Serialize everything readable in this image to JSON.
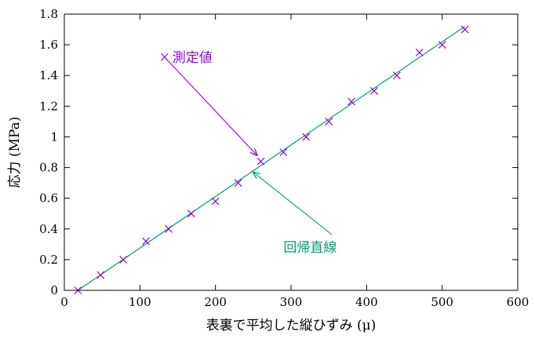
{
  "chart_data": {
    "type": "scatter",
    "title": "",
    "xlabel": "表裏で平均した縦ひずみ (μ)",
    "ylabel": "応力 (MPa)",
    "xlim": [
      0,
      600
    ],
    "ylim": [
      0,
      1.8
    ],
    "xticks": [
      "0",
      "100",
      "200",
      "300",
      "400",
      "500",
      "600"
    ],
    "yticks": [
      "0",
      "0.2",
      "0.4",
      "0.6",
      "0.8",
      "1",
      "1.2",
      "1.4",
      "1.6",
      "1.8"
    ],
    "grid": false,
    "series": [
      {
        "name": "測定値",
        "type": "scatter",
        "marker": "x",
        "color": "#9400d3",
        "x": [
          18,
          48,
          78,
          108,
          138,
          168,
          200,
          230,
          260,
          290,
          320,
          350,
          380,
          410,
          440,
          470,
          500,
          530
        ],
        "y": [
          0.0,
          0.1,
          0.2,
          0.32,
          0.4,
          0.5,
          0.58,
          0.7,
          0.84,
          0.9,
          1.0,
          1.1,
          1.23,
          1.3,
          1.4,
          1.55,
          1.6,
          1.7
        ]
      },
      {
        "name": "回帰直線",
        "type": "line",
        "color": "#009e73",
        "x": [
          18,
          530
        ],
        "y": [
          0.0,
          1.72
        ]
      }
    ],
    "annotations": [
      {
        "text": "測定値",
        "color": "#9400d3",
        "label_x": 143,
        "label_y": 1.52,
        "arrow_to_x": 255,
        "arrow_to_y": 0.88
      },
      {
        "text": "回帰直線",
        "color": "#009e73",
        "label_x": 290,
        "label_y": 0.28,
        "arrow_to_x": 250,
        "arrow_to_y": 0.77
      }
    ]
  }
}
